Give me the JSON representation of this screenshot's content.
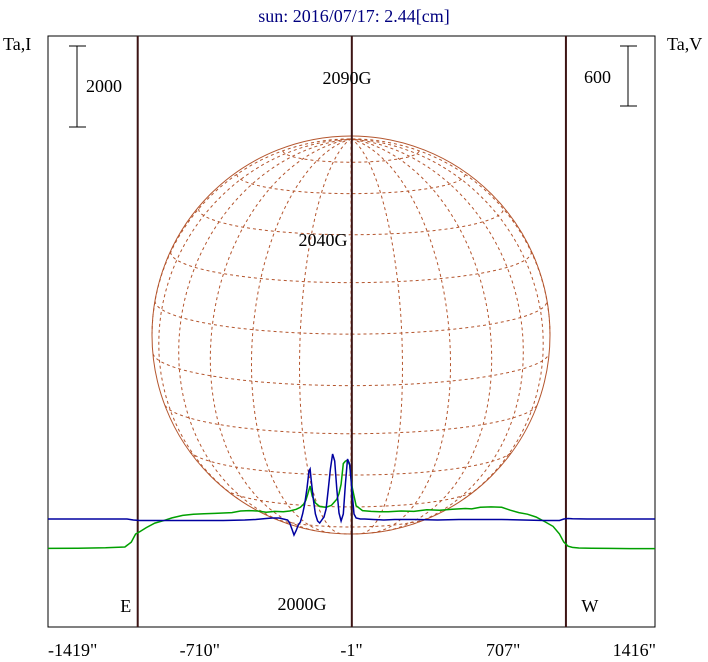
{
  "chart_data": {
    "type": "line",
    "title": "sun: 2016/07/17: 2.44[cm]",
    "ylabel_left": "Ta,I",
    "ylabel_right": "Ta,V",
    "scale_bar_left": "2000",
    "scale_bar_right": "600",
    "xlim": [
      -1419,
      1416
    ],
    "x_ticks": [
      {
        "value": -1419,
        "label": "-1419\""
      },
      {
        "value": -710,
        "label": "-710\""
      },
      {
        "value": -1,
        "label": "-1\""
      },
      {
        "value": 707,
        "label": "707\""
      },
      {
        "value": 1416,
        "label": "1416\""
      }
    ],
    "limb_markers": [
      {
        "value": -1000,
        "label": "E"
      },
      {
        "value": 1000,
        "label": "W"
      }
    ],
    "annotations": [
      {
        "x": -20,
        "text": "2090G"
      },
      {
        "x": -200,
        "text": "2040G"
      },
      {
        "x": -270,
        "text": "2000G"
      }
    ],
    "colors": {
      "title": "#00007f",
      "stokes_i": "#00a000",
      "stokes_v": "#0000a0",
      "disk_grid": "#b4552d",
      "axis": "#000000",
      "limb_line": "#3c1414"
    },
    "series": [
      {
        "name": "I",
        "x": [
          -1419,
          -1280,
          -1150,
          -1060,
          -1030,
          -1010,
          -990,
          -960,
          -920,
          -880,
          -840,
          -790,
          -740,
          -690,
          -640,
          -600,
          -560,
          -520,
          -480,
          -440,
          -400,
          -360,
          -320,
          -290,
          -260,
          -240,
          -225,
          -215,
          -205,
          -195,
          -185,
          -170,
          -150,
          -120,
          -95,
          -80,
          -70,
          -60,
          -50,
          -40,
          -30,
          -20,
          -10,
          0,
          20,
          50,
          90,
          130,
          170,
          230,
          290,
          350,
          410,
          470,
          530,
          560,
          600,
          650,
          700,
          740,
          780,
          820,
          860,
          900,
          940,
          970,
          990,
          1010,
          1030,
          1060,
          1120,
          1200,
          1300,
          1416
        ],
        "y": [
          -455,
          -450,
          -440,
          -420,
          -300,
          -100,
          -40,
          60,
          170,
          230,
          300,
          360,
          390,
          400,
          410,
          420,
          430,
          470,
          480,
          470,
          440,
          460,
          450,
          470,
          510,
          560,
          640,
          730,
          900,
          1090,
          840,
          670,
          580,
          560,
          610,
          700,
          760,
          900,
          1130,
          1640,
          1700,
          1720,
          1600,
          1100,
          600,
          480,
          460,
          450,
          450,
          470,
          460,
          500,
          490,
          510,
          530,
          520,
          560,
          570,
          560,
          490,
          430,
          390,
          320,
          210,
          90,
          -100,
          -300,
          -400,
          -430,
          -445,
          -450,
          -455,
          -460,
          -460
        ]
      },
      {
        "name": "V",
        "x": [
          -1419,
          -1300,
          -1150,
          -1050,
          -1020,
          -990,
          -900,
          -800,
          -700,
          -600,
          -500,
          -450,
          -400,
          -370,
          -340,
          -320,
          -300,
          -290,
          -280,
          -270,
          -260,
          -250,
          -240,
          -230,
          -220,
          -210,
          -200,
          -195,
          -190,
          -180,
          -170,
          -160,
          -150,
          -140,
          -130,
          -120,
          -110,
          -100,
          -90,
          -80,
          -70,
          -60,
          -50,
          -40,
          -30,
          -20,
          -10,
          0,
          10,
          20,
          40,
          60,
          100,
          150,
          200,
          300,
          400,
          500,
          600,
          700,
          800,
          900,
          970,
          990,
          1010,
          1030,
          1100,
          1200,
          1300,
          1416
        ],
        "y": [
          0,
          0,
          0,
          0,
          -10,
          -15,
          -15,
          -15,
          -15,
          -15,
          -10,
          -5,
          5,
          10,
          10,
          0,
          -10,
          -40,
          -100,
          -160,
          -115,
          -60,
          -30,
          50,
          150,
          300,
          480,
          500,
          400,
          200,
          50,
          -20,
          -40,
          -10,
          20,
          100,
          300,
          500,
          650,
          580,
          300,
          60,
          -20,
          50,
          350,
          600,
          550,
          300,
          50,
          10,
          0,
          0,
          -5,
          -10,
          -5,
          -5,
          -10,
          -5,
          -5,
          -5,
          -10,
          -15,
          -15,
          0,
          5,
          2,
          0,
          0,
          0,
          0
        ]
      }
    ]
  }
}
